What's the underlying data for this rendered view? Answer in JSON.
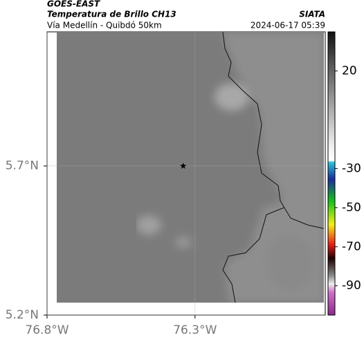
{
  "chart_data": {
    "type": "map",
    "title": "GOES-EAST",
    "subtitle": "Temperatura de Brillo CH13",
    "source": "SIATA",
    "route": "Vía Medellín - Quibdó 50km",
    "timestamp": "2024-06-17 05:39",
    "xlim": [
      -76.8,
      -75.86
    ],
    "ylim": [
      5.2,
      6.15
    ],
    "xticks": [
      {
        "value": -76.8,
        "label": "76.8°W"
      },
      {
        "value": -76.3,
        "label": "76.3°W"
      }
    ],
    "yticks": [
      {
        "value": 5.2,
        "label": "5.2°N"
      },
      {
        "value": 5.7,
        "label": "5.7°N"
      }
    ],
    "grid": true,
    "marker": {
      "lon": -76.34,
      "lat": 5.7
    },
    "clim": [
      40,
      -105
    ],
    "cticks": [
      20,
      -30,
      -50,
      -70,
      -90
    ]
  }
}
